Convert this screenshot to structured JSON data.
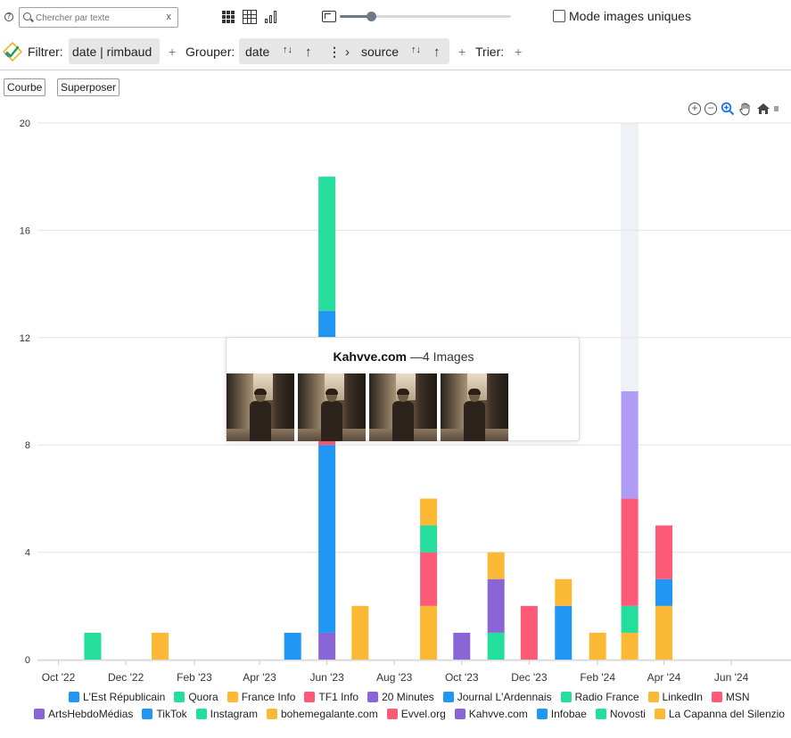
{
  "search": {
    "placeholder": "Chercher par texte",
    "clear": "x"
  },
  "help": {
    "glyph": "?"
  },
  "unique_mode": {
    "label": "Mode images uniques",
    "checked": false
  },
  "filter_bar": {
    "filter_label": "Filtrer:",
    "filter_value": "date | rimbaud",
    "group_label": "Grouper:",
    "group_fields": [
      "date",
      "source"
    ],
    "sort_label": "Trier:",
    "add": "+"
  },
  "buttons": {
    "curve": "Courbe",
    "overlay": "Superposer"
  },
  "zoom_level": 0.18,
  "tooltip": {
    "source": "Kahvve.com",
    "count_text": "—4 Images",
    "image_count": 4
  },
  "colors": {
    "blue": "#2196f3",
    "green": "#26de9c",
    "orange": "#fcb935",
    "red": "#fd5a78",
    "purple": "#8a65d6",
    "lavender": "#b09cf5",
    "highlight": "#eef2f7"
  },
  "chart_data": {
    "type": "bar",
    "stacked": true,
    "y_ticks": [
      0,
      4,
      8,
      12,
      16,
      20
    ],
    "ylim": [
      0,
      20
    ],
    "x_ticks": [
      "Oct '22",
      "Dec '22",
      "Feb '23",
      "Apr '23",
      "Jun '23",
      "Aug '23",
      "Oct '23",
      "Dec '23",
      "Feb '24",
      "Apr '24",
      "Jun '24"
    ],
    "x_range": [
      "2022-09-12",
      "2024-07-25"
    ],
    "bars": [
      {
        "date": "2022-11-01",
        "segments": [
          {
            "color": "green",
            "value": 1
          }
        ]
      },
      {
        "date": "2023-01-01",
        "segments": [
          {
            "color": "orange",
            "value": 1
          }
        ]
      },
      {
        "date": "2023-05-01",
        "segments": [
          {
            "color": "blue",
            "value": 1
          }
        ]
      },
      {
        "date": "2023-06-01",
        "segments": [
          {
            "color": "purple",
            "value": 1
          },
          {
            "color": "blue",
            "value": 7
          },
          {
            "color": "red",
            "value": 3
          },
          {
            "color": "orange",
            "value": 1
          },
          {
            "color": "blue",
            "value": 1
          },
          {
            "color": "green",
            "value": 5
          }
        ]
      },
      {
        "date": "2023-07-01",
        "segments": [
          {
            "color": "orange",
            "value": 2
          }
        ]
      },
      {
        "date": "2023-09-01",
        "segments": [
          {
            "color": "orange",
            "value": 2
          },
          {
            "color": "red",
            "value": 2
          },
          {
            "color": "green",
            "value": 1
          },
          {
            "color": "orange",
            "value": 1
          }
        ]
      },
      {
        "date": "2023-10-01",
        "segments": [
          {
            "color": "purple",
            "value": 1
          }
        ]
      },
      {
        "date": "2023-11-01",
        "segments": [
          {
            "color": "green",
            "value": 1
          },
          {
            "color": "purple",
            "value": 2
          },
          {
            "color": "orange",
            "value": 1
          }
        ]
      },
      {
        "date": "2023-12-01",
        "segments": [
          {
            "color": "red",
            "value": 2
          }
        ]
      },
      {
        "date": "2024-01-01",
        "segments": [
          {
            "color": "blue",
            "value": 2
          },
          {
            "color": "orange",
            "value": 1
          }
        ]
      },
      {
        "date": "2024-02-01",
        "segments": [
          {
            "color": "orange",
            "value": 1
          }
        ]
      },
      {
        "date": "2024-03-01",
        "segments": [
          {
            "color": "orange",
            "value": 1
          },
          {
            "color": "green",
            "value": 1
          },
          {
            "color": "red",
            "value": 4
          },
          {
            "color": "lavender",
            "value": 4
          }
        ]
      },
      {
        "date": "2024-04-01",
        "segments": [
          {
            "color": "orange",
            "value": 2
          },
          {
            "color": "blue",
            "value": 1
          },
          {
            "color": "red",
            "value": 2
          }
        ]
      }
    ],
    "highlight_date": "2024-03-01",
    "legend": [
      {
        "name": "L'Est Républicain",
        "color": "blue"
      },
      {
        "name": "Quora",
        "color": "green"
      },
      {
        "name": "France Info",
        "color": "orange"
      },
      {
        "name": "TF1 Info",
        "color": "red"
      },
      {
        "name": "20 Minutes",
        "color": "purple"
      },
      {
        "name": "Journal L'Ardennais",
        "color": "blue"
      },
      {
        "name": "Radio France",
        "color": "green"
      },
      {
        "name": "LinkedIn",
        "color": "orange"
      },
      {
        "name": "MSN",
        "color": "red"
      },
      {
        "name": "ArtsHebdoMédias",
        "color": "purple"
      },
      {
        "name": "TikTok",
        "color": "blue"
      },
      {
        "name": "Instagram",
        "color": "green"
      },
      {
        "name": "bohemegalante.com",
        "color": "orange"
      },
      {
        "name": "Evvel.org",
        "color": "red"
      },
      {
        "name": "Kahvve.com",
        "color": "purple"
      },
      {
        "name": "Infobae",
        "color": "blue"
      },
      {
        "name": "Novosti",
        "color": "green"
      },
      {
        "name": "La Capanna del Silenzio",
        "color": "orange"
      }
    ]
  }
}
